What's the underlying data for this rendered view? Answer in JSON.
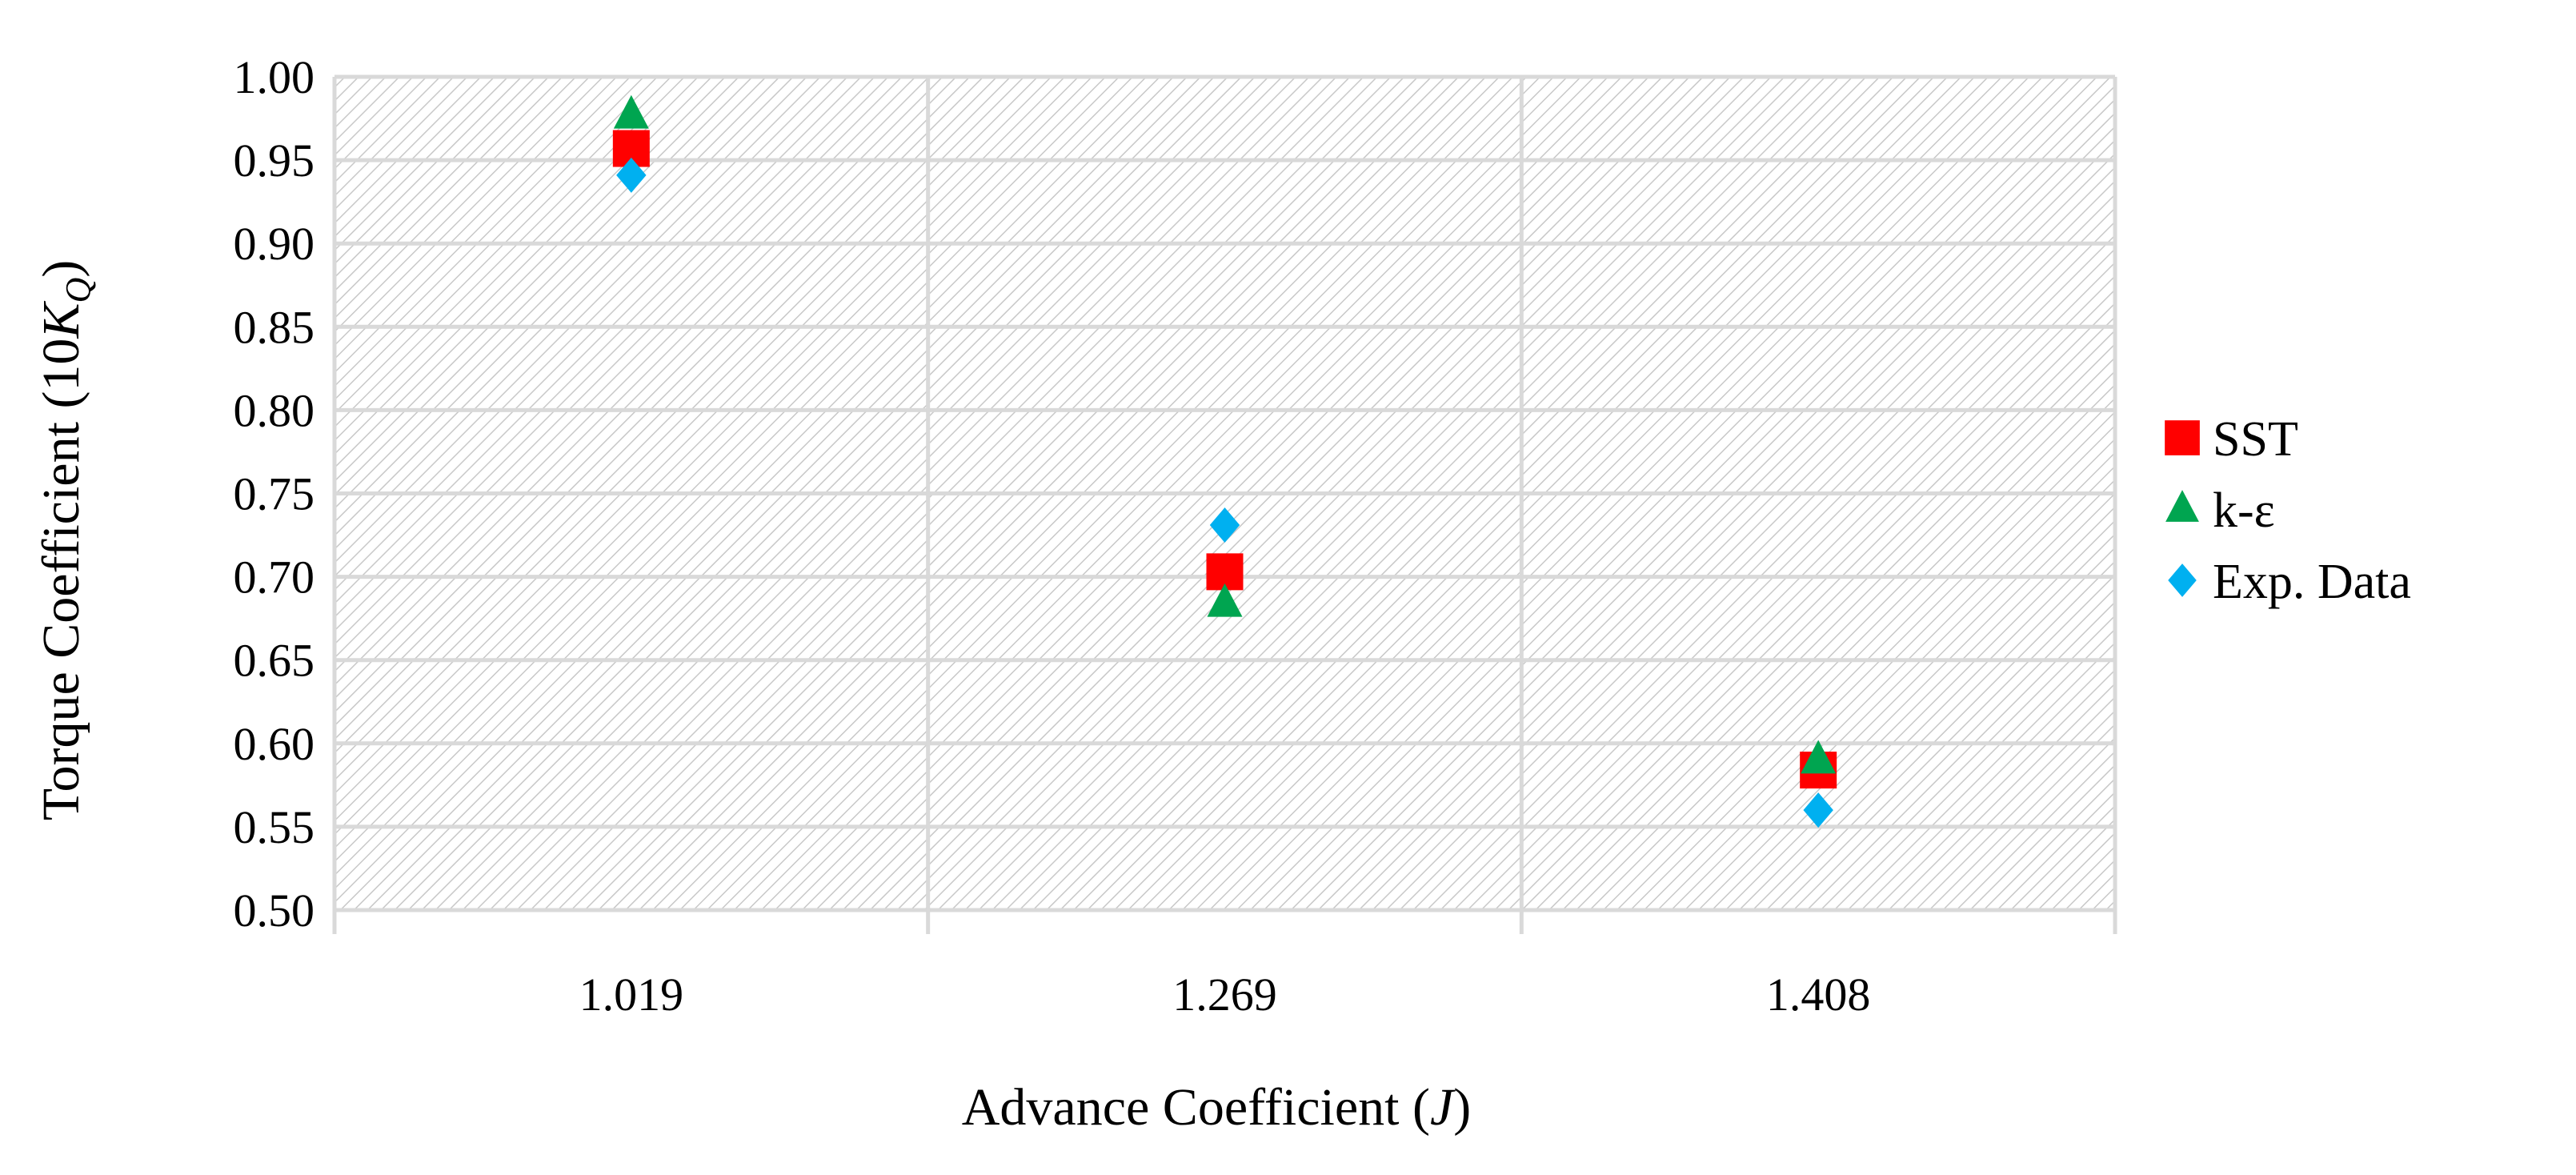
{
  "chart_data": {
    "type": "scatter",
    "categories": [
      "1.019",
      "1.269",
      "1.408"
    ],
    "xlabel": "Advance Coefficient (J)",
    "xlabel_parts": {
      "prefix": "Advance Coefficient (",
      "var": "J",
      "suffix": ")"
    },
    "ylabel": "Torque Coefficient (10KQ)",
    "ylabel_parts": {
      "prefix": "Torque Coefficient (10",
      "var": "K",
      "sub": "Q",
      "suffix": ")"
    },
    "ylim": [
      0.5,
      1.0
    ],
    "yticks": [
      "0.50",
      "0.55",
      "0.60",
      "0.65",
      "0.70",
      "0.75",
      "0.80",
      "0.85",
      "0.90",
      "0.95",
      "1.00"
    ],
    "grid": true,
    "legend_position": "right",
    "series": [
      {
        "name": "SST",
        "marker": "square",
        "color": "#ff0000",
        "values": [
          0.957,
          0.703,
          0.584
        ]
      },
      {
        "name": "k-ε",
        "marker": "triangle",
        "color": "#00a550",
        "values": [
          0.977,
          0.684,
          0.59
        ]
      },
      {
        "name": "Exp. Data",
        "marker": "diamond",
        "color": "#00b0f0",
        "values": [
          0.941,
          0.731,
          0.56
        ]
      }
    ]
  }
}
